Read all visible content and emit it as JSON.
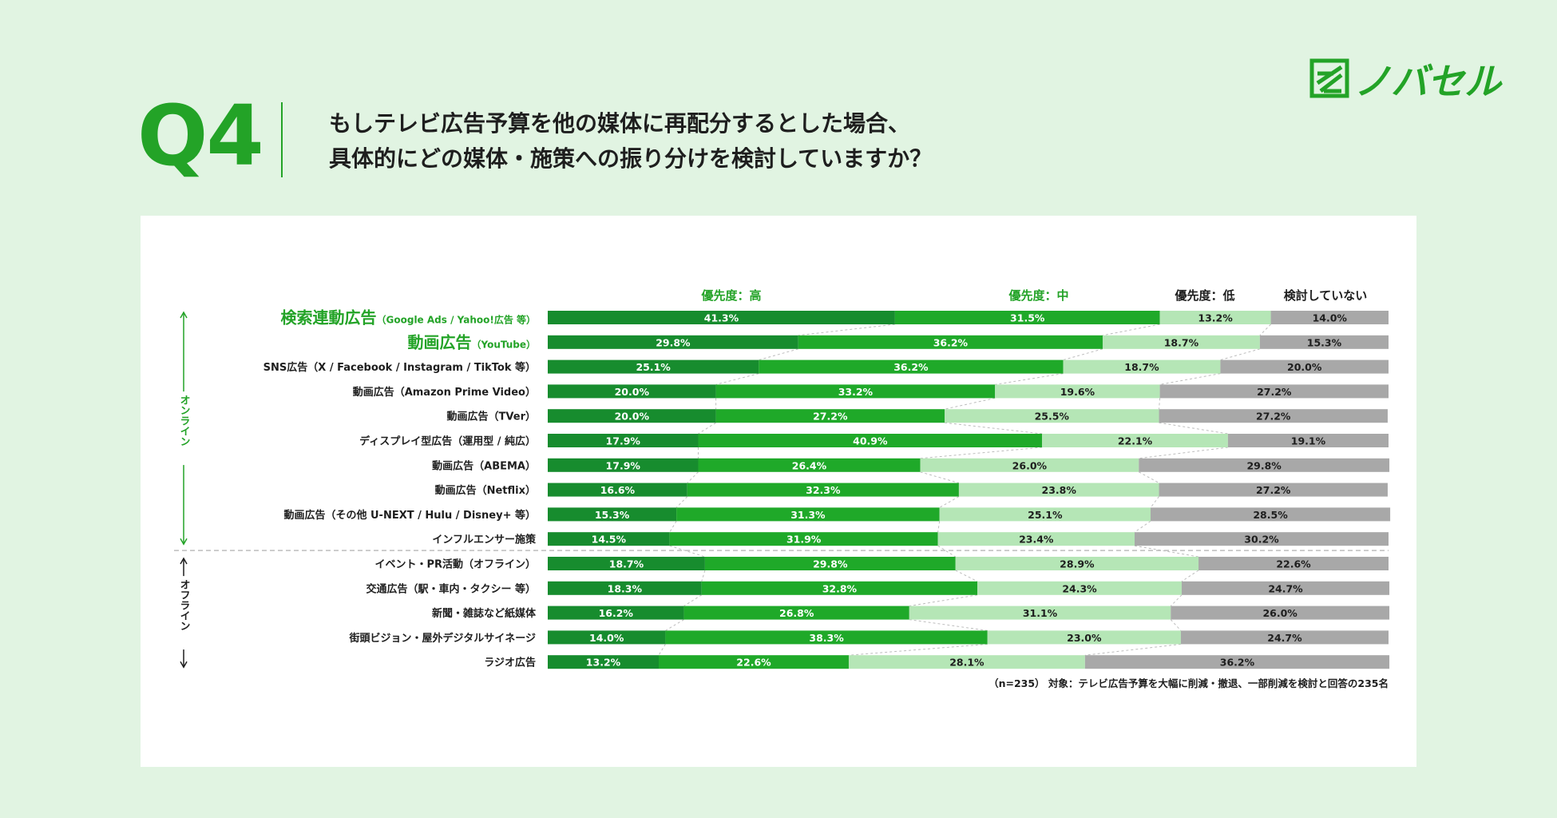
{
  "header": {
    "q_number": "Q4",
    "question_line1": "もしテレビ広告予算を他の媒体に再配分するとした場合、",
    "question_line2": "具体的にどの媒体・施策への振り分けを検討していますか？",
    "logo_text": "ノバセル",
    "logo_mark": "logo-mark-icon"
  },
  "colors": {
    "background": "#e1f4e2",
    "accent": "#23a327",
    "high": "#178c2e",
    "mid": "#1fa929",
    "low": "#b5e6b6",
    "none": "#a8a8a8"
  },
  "chart_data": {
    "type": "bar",
    "orientation": "horizontal-stacked-100",
    "legend": [
      "優先度：高",
      "優先度：中",
      "優先度：低",
      "検討していない"
    ],
    "groups": [
      {
        "label": "オンライン",
        "start": 0,
        "end": 9
      },
      {
        "label": "オフライン",
        "start": 10,
        "end": 14
      }
    ],
    "rows": [
      {
        "label": "検索連動広告",
        "sub": "（Google Ads / Yahoo!広告 等）",
        "emphasis": true,
        "values": [
          41.3,
          31.5,
          13.2,
          14.0
        ]
      },
      {
        "label": "動画広告",
        "sub": "（YouTube）",
        "emphasis": true,
        "values": [
          29.8,
          36.2,
          18.7,
          15.3
        ]
      },
      {
        "label": "SNS広告（X / Facebook / Instagram / TikTok 等）",
        "values": [
          25.1,
          36.2,
          18.7,
          20.0
        ]
      },
      {
        "label": "動画広告（Amazon Prime Video）",
        "values": [
          20.0,
          33.2,
          19.6,
          27.2
        ]
      },
      {
        "label": "動画広告（TVer）",
        "values": [
          20.0,
          27.2,
          25.5,
          27.2
        ]
      },
      {
        "label": "ディスプレイ型広告（運用型 / 純広）",
        "values": [
          17.9,
          40.9,
          22.1,
          19.1
        ]
      },
      {
        "label": "動画広告（ABEMA）",
        "values": [
          17.9,
          26.4,
          26.0,
          29.8
        ]
      },
      {
        "label": "動画広告（Netflix）",
        "values": [
          16.6,
          32.3,
          23.8,
          27.2
        ]
      },
      {
        "label": "動画広告（その他 U-NEXT / Hulu / Disney+ 等）",
        "values": [
          15.3,
          31.3,
          25.1,
          28.5
        ]
      },
      {
        "label": "インフルエンサー施策",
        "values": [
          14.5,
          31.9,
          23.4,
          30.2
        ]
      },
      {
        "label": "イベント・PR活動（オフライン）",
        "values": [
          18.7,
          29.8,
          28.9,
          22.6
        ]
      },
      {
        "label": "交通広告（駅・車内・タクシー 等）",
        "values": [
          18.3,
          32.8,
          24.3,
          24.7
        ]
      },
      {
        "label": "新聞・雑誌など紙媒体",
        "values": [
          16.2,
          26.8,
          31.1,
          26.0
        ]
      },
      {
        "label": "街頭ビジョン・屋外デジタルサイネージ",
        "values": [
          14.0,
          38.3,
          23.0,
          24.7
        ]
      },
      {
        "label": "ラジオ広告",
        "values": [
          13.2,
          22.6,
          28.1,
          36.2
        ]
      }
    ],
    "value_suffix": "%",
    "footnote": "（n=235）  対象：テレビ広告予算を大幅に削減・撤退、一部削減を検討と回答の235名"
  }
}
